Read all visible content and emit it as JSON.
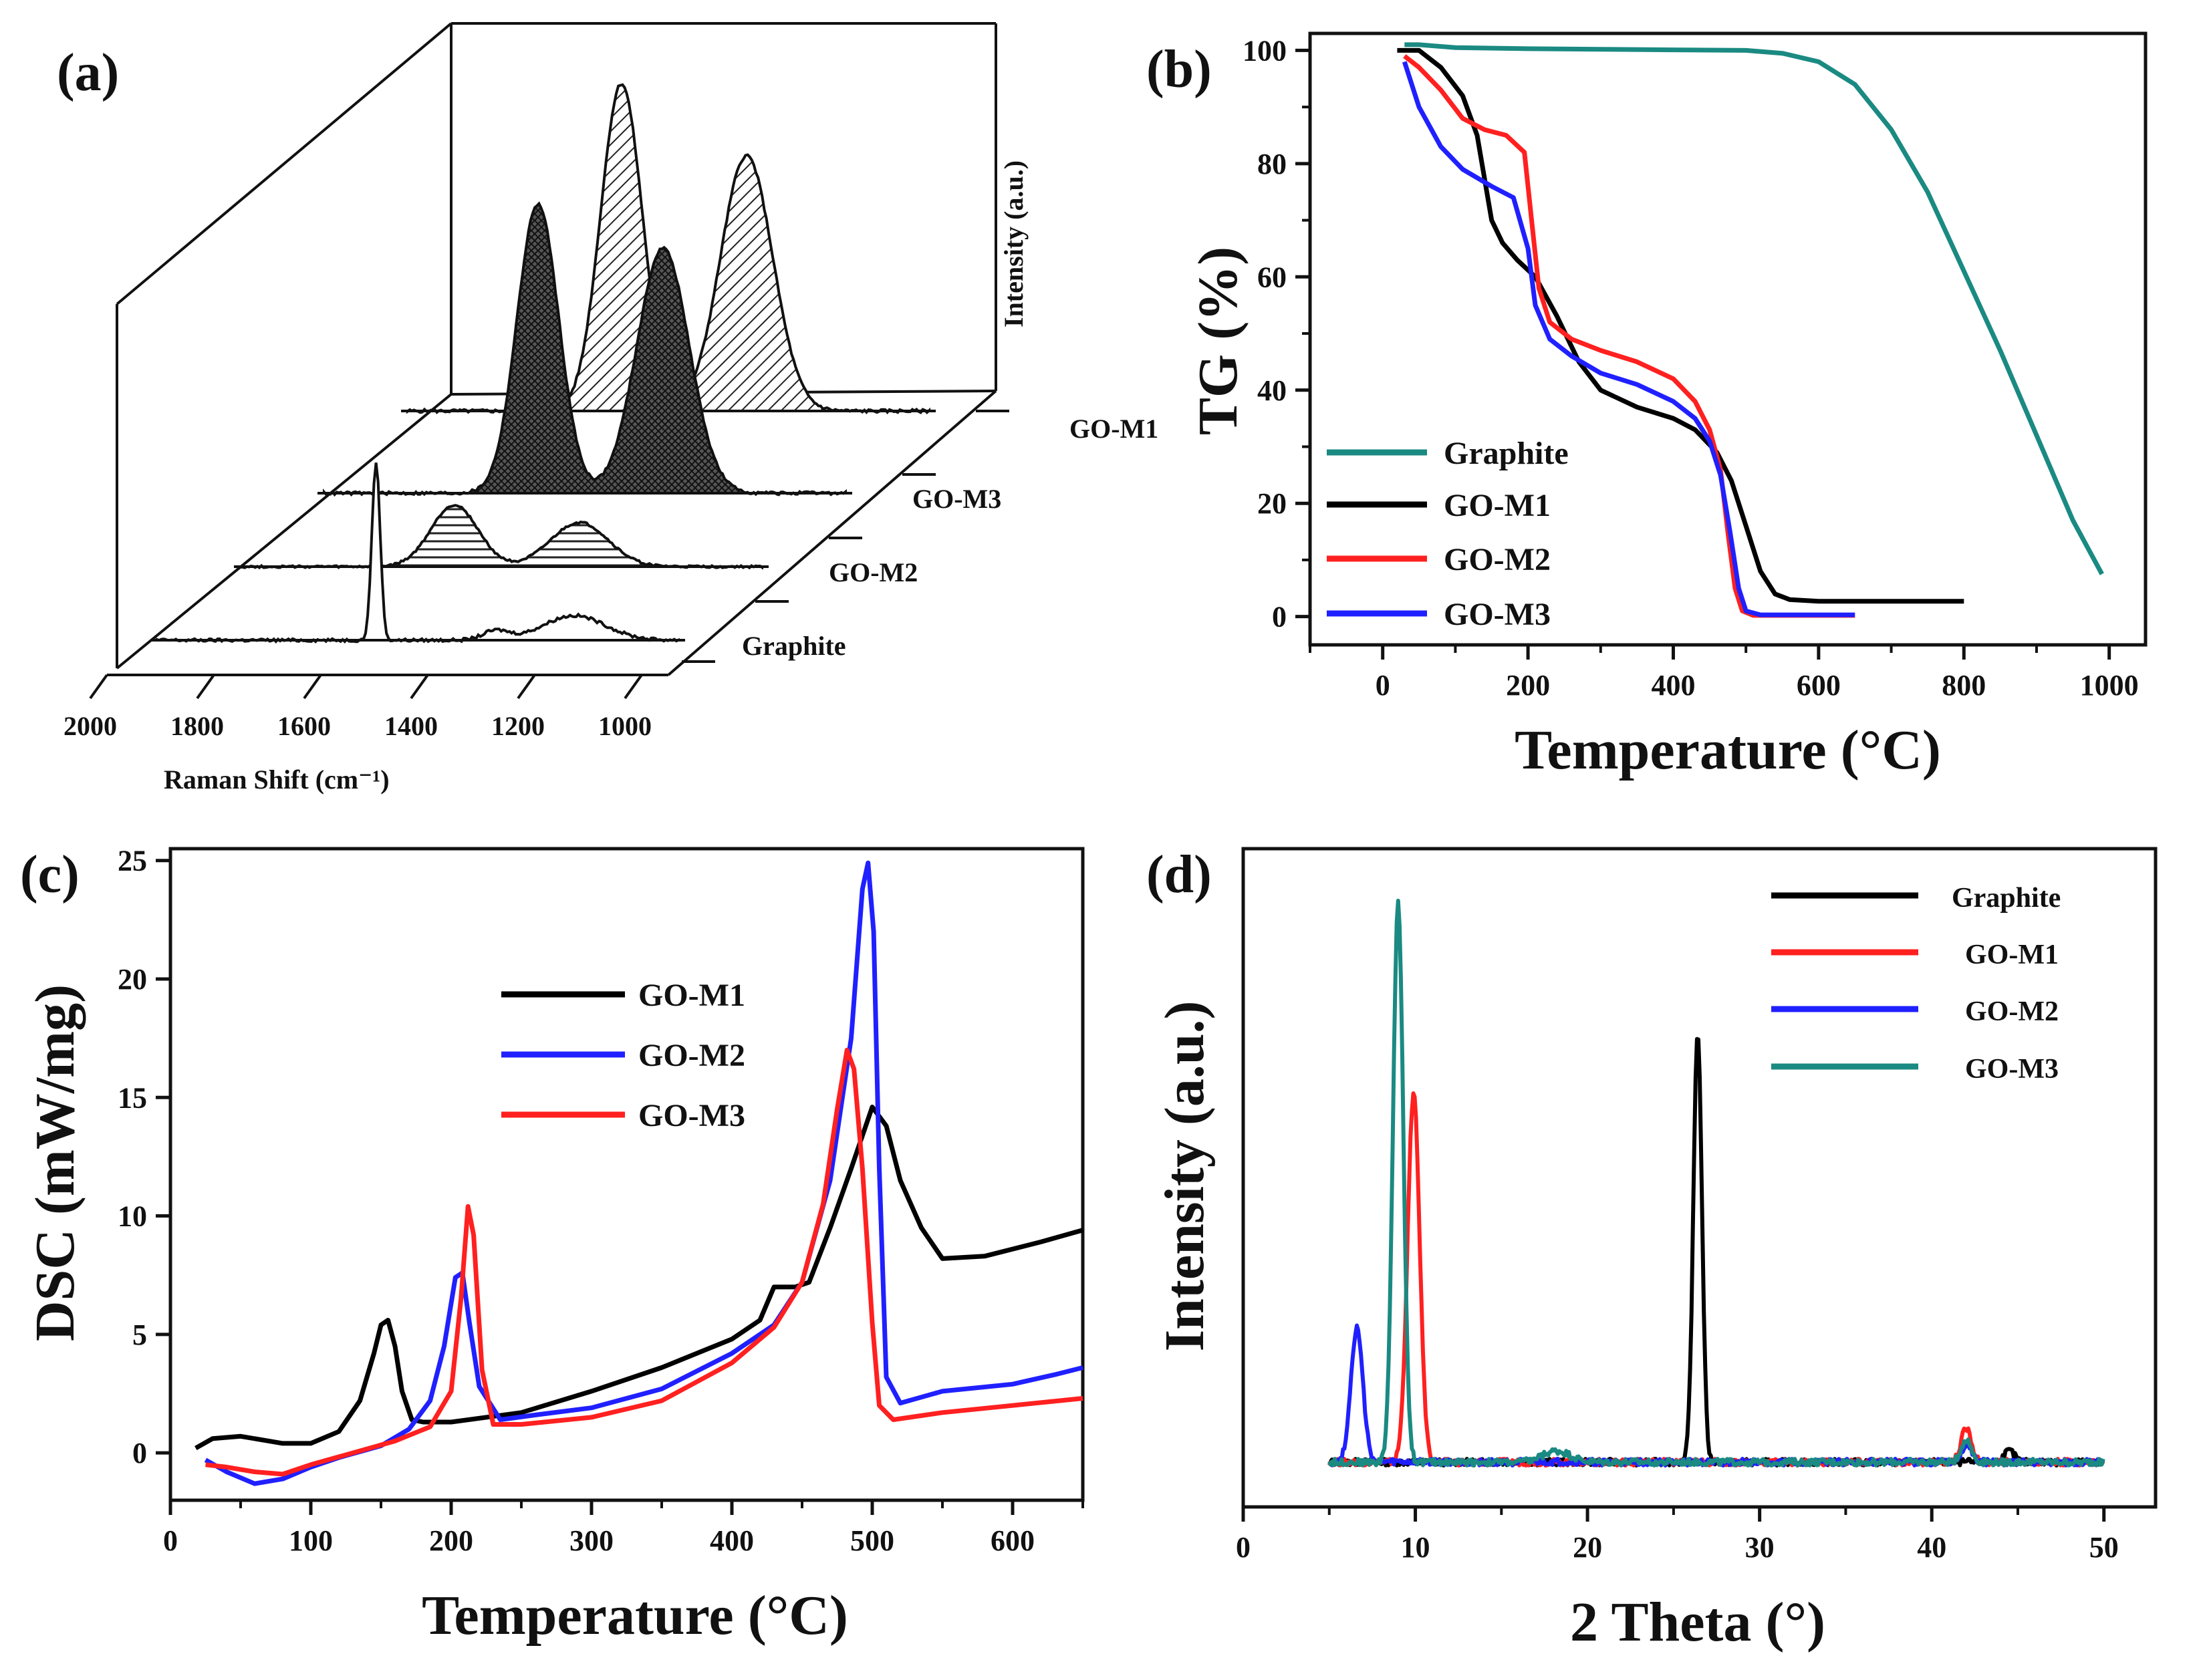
{
  "colors": {
    "graphite_b": "#1a8a82",
    "go_m1": "#000000",
    "go_m2": "#ff2020",
    "go_m3": "#2020ff",
    "teal": "#1a8a82"
  },
  "chart_data": [
    {
      "id": "a",
      "panel_label": "(a)",
      "type": "line",
      "title": "",
      "xlabel": "Raman Shift (cm⁻¹)",
      "ylabel": "Intensity (a.u.)",
      "xlim": [
        2000,
        1000
      ],
      "x_ticks": [
        2000,
        1800,
        1600,
        1400,
        1200,
        1000
      ],
      "x_tick_labels": [
        "2000",
        "1800",
        "1600",
        "1400",
        "1200",
        "1000"
      ],
      "series": [
        {
          "name": "Graphite",
          "peaks": [
            {
              "x": 1580,
              "h": 0.58,
              "w": 8
            },
            {
              "x": 1350,
              "h": 0.03,
              "w": 25
            }
          ]
        },
        {
          "name": "GO-M2",
          "peaks": [
            {
              "x": 1590,
              "h": 0.28,
              "w": 45
            },
            {
              "x": 1350,
              "h": 0.2,
              "w": 55
            }
          ]
        },
        {
          "name": "GO-M3",
          "peaks": [
            {
              "x": 1590,
              "h": 0.92,
              "w": 40
            },
            {
              "x": 1350,
              "h": 0.78,
              "w": 50
            }
          ]
        },
        {
          "name": "GO-M1",
          "peaks": [
            {
              "x": 1590,
              "h": 1.0,
              "w": 40
            },
            {
              "x": 1350,
              "h": 0.78,
              "w": 50
            }
          ]
        }
      ]
    },
    {
      "id": "b",
      "panel_label": "(b)",
      "type": "line",
      "xlabel": "Temperature (°C)",
      "ylabel": "TG (%)",
      "xlim": [
        -100,
        1050
      ],
      "ylim": [
        -5,
        103
      ],
      "x_ticks": [
        0,
        200,
        400,
        600,
        800,
        1000
      ],
      "x_tick_labels": [
        "0",
        "200",
        "400",
        "600",
        "800",
        "1000"
      ],
      "y_ticks": [
        0,
        20,
        40,
        60,
        80,
        100
      ],
      "y_tick_labels": [
        "0",
        "20",
        "40",
        "60",
        "80",
        "100"
      ],
      "series": [
        {
          "name": "Graphite",
          "x": [
            30,
            50,
            100,
            200,
            300,
            400,
            500,
            550,
            600,
            650,
            700,
            750,
            800,
            850,
            900,
            950,
            990
          ],
          "y": [
            101,
            101,
            100.5,
            100.3,
            100.2,
            100.1,
            100,
            99.5,
            98,
            94,
            86,
            75,
            61,
            47,
            32,
            17,
            7.5
          ]
        },
        {
          "name": "GO-M1",
          "x": [
            20,
            50,
            80,
            110,
            130,
            150,
            165,
            185,
            210,
            240,
            270,
            300,
            350,
            400,
            430,
            460,
            480,
            500,
            520,
            540,
            560,
            600,
            700,
            800
          ],
          "y": [
            100,
            100,
            97,
            92,
            85,
            70,
            66,
            63,
            60,
            53,
            45,
            40,
            37,
            35,
            33,
            29,
            24,
            16,
            8,
            4,
            3,
            2.7,
            2.7,
            2.7
          ]
        },
        {
          "name": "GO-M2",
          "x": [
            30,
            50,
            80,
            110,
            140,
            170,
            195,
            205,
            215,
            230,
            260,
            300,
            350,
            400,
            430,
            450,
            465,
            475,
            485,
            495,
            510,
            550,
            650
          ],
          "y": [
            99,
            97,
            93,
            88,
            86,
            85,
            82,
            70,
            58,
            52,
            49,
            47,
            45,
            42,
            38,
            33,
            26,
            15,
            5,
            1,
            0.2,
            0.2,
            0.2
          ]
        },
        {
          "name": "GO-M3",
          "x": [
            30,
            50,
            80,
            110,
            150,
            180,
            200,
            210,
            230,
            260,
            300,
            350,
            400,
            430,
            450,
            465,
            478,
            490,
            500,
            520,
            650
          ],
          "y": [
            98,
            90,
            83,
            79,
            76,
            74,
            65,
            55,
            49,
            46,
            43,
            41,
            38,
            35,
            31,
            25,
            15,
            5,
            1,
            0.3,
            0.3
          ]
        }
      ]
    },
    {
      "id": "c",
      "panel_label": "(c)",
      "type": "line",
      "xlabel": "Temperature (°C)",
      "ylabel": "DSC (mW/mg)",
      "xlim": [
        0,
        650
      ],
      "ylim": [
        -2,
        25.5
      ],
      "x_ticks": [
        0,
        100,
        200,
        300,
        400,
        500,
        600
      ],
      "x_tick_labels": [
        "0",
        "100",
        "200",
        "300",
        "400",
        "500",
        "600"
      ],
      "y_ticks": [
        0,
        5,
        10,
        15,
        20,
        25
      ],
      "y_tick_labels": [
        "0",
        "5",
        "10",
        "15",
        "20",
        "25"
      ],
      "series": [
        {
          "name": "GO-M1",
          "x": [
            18,
            30,
            50,
            80,
            100,
            120,
            135,
            145,
            150,
            155,
            160,
            165,
            172,
            180,
            200,
            250,
            300,
            350,
            400,
            420,
            430,
            445,
            455,
            470,
            485,
            500,
            510,
            520,
            535,
            550,
            580,
            620,
            650
          ],
          "y": [
            0.2,
            0.6,
            0.7,
            0.4,
            0.4,
            0.9,
            2.2,
            4.2,
            5.4,
            5.6,
            4.5,
            2.6,
            1.4,
            1.3,
            1.3,
            1.7,
            2.6,
            3.6,
            4.8,
            5.6,
            7,
            7,
            7.2,
            9.5,
            12,
            14.6,
            13.8,
            11.5,
            9.5,
            8.2,
            8.3,
            8.9,
            9.4
          ]
        },
        {
          "name": "GO-M2",
          "x": [
            25,
            40,
            60,
            80,
            100,
            120,
            150,
            170,
            185,
            195,
            203,
            208,
            213,
            220,
            235,
            260,
            300,
            350,
            400,
            430,
            450,
            470,
            485,
            493,
            497,
            501,
            505,
            510,
            520,
            550,
            600,
            630,
            650
          ],
          "y": [
            -0.3,
            -0.8,
            -1.3,
            -1.1,
            -0.6,
            -0.2,
            0.3,
            1.0,
            2.2,
            4.5,
            7.4,
            7.6,
            5.5,
            2.8,
            1.4,
            1.6,
            1.9,
            2.7,
            4.2,
            5.4,
            7.2,
            11.5,
            17.5,
            23.8,
            24.9,
            22,
            12,
            3.2,
            2.1,
            2.6,
            2.9,
            3.3,
            3.6
          ]
        },
        {
          "name": "GO-M3",
          "x": [
            25,
            40,
            60,
            80,
            100,
            130,
            160,
            185,
            200,
            207,
            212,
            216,
            222,
            230,
            250,
            300,
            350,
            400,
            430,
            450,
            465,
            475,
            482,
            487,
            493,
            500,
            505,
            515,
            550,
            600,
            650
          ],
          "y": [
            -0.5,
            -0.6,
            -0.8,
            -0.9,
            -0.5,
            0.0,
            0.5,
            1.1,
            2.6,
            6.5,
            10.4,
            9.2,
            3.5,
            1.2,
            1.2,
            1.5,
            2.2,
            3.8,
            5.3,
            7.2,
            10.5,
            14.5,
            17.0,
            16.2,
            12.0,
            5.5,
            2.0,
            1.4,
            1.7,
            2.0,
            2.3
          ]
        }
      ],
      "legend": [
        "GO-M1",
        "GO-M2",
        "GO-M3"
      ]
    },
    {
      "id": "d",
      "panel_label": "(d)",
      "type": "line",
      "xlabel": "2 Theta (°)",
      "ylabel": "Intensity (a.u.)",
      "xlim": [
        0,
        53
      ],
      "x_ticks": [
        0,
        10,
        20,
        30,
        40,
        50
      ],
      "x_tick_labels": [
        "0",
        "10",
        "20",
        "30",
        "40",
        "50"
      ],
      "series": [
        {
          "name": "Graphite",
          "peaks": [
            {
              "x": 26.4,
              "h": 0.77,
              "w": 0.25
            },
            {
              "x": 44.5,
              "h": 0.02,
              "w": 0.3
            }
          ]
        },
        {
          "name": "GO-M1",
          "peaks": [
            {
              "x": 9.9,
              "h": 0.66,
              "w": 0.35
            },
            {
              "x": 42.0,
              "h": 0.06,
              "w": 0.3
            }
          ]
        },
        {
          "name": "GO-M2",
          "peaks": [
            {
              "x": 6.6,
              "h": 0.24,
              "w": 0.35
            },
            {
              "x": 42.0,
              "h": 0.03,
              "w": 0.3
            }
          ]
        },
        {
          "name": "GO-M3",
          "peaks": [
            {
              "x": 9.0,
              "h": 1.0,
              "w": 0.3
            },
            {
              "x": 18.2,
              "h": 0.02,
              "w": 0.8
            },
            {
              "x": 42.0,
              "h": 0.04,
              "w": 0.3
            }
          ]
        }
      ],
      "legend": [
        "Graphite",
        "GO-M1",
        "GO-M2",
        "GO-M3"
      ]
    }
  ]
}
